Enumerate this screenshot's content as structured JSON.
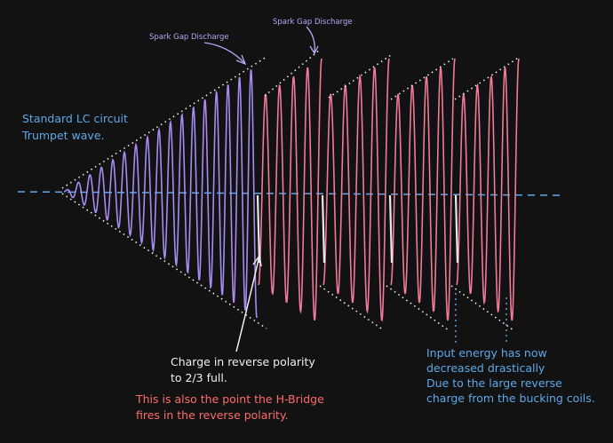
{
  "spark_gap_labels": [
    "Spark Gap Discharge",
    "Spark Gap Discharge"
  ],
  "lc_note": [
    "Standard LC circuit",
    "Trumpet wave."
  ],
  "charge_note": [
    "Charge in reverse polarity",
    "to 2/3 full."
  ],
  "hbridge_note": [
    "This is also the point the H-Bridge",
    "fires in the reverse polarity."
  ],
  "energy_note": [
    "Input energy has now",
    "decreased drastically",
    "Due to the large reverse",
    "charge from the bucking coils."
  ]
}
